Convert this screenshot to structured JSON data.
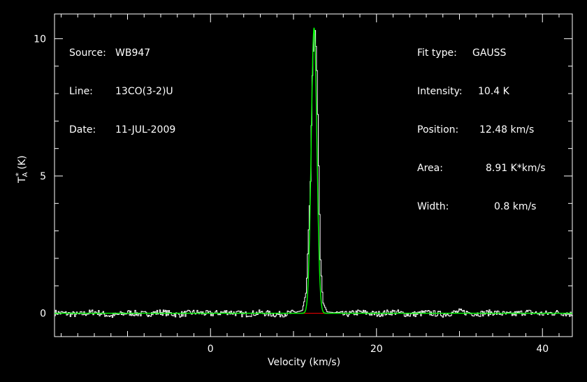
{
  "header_left": {
    "source_label": "Source:",
    "source_value": "WB947",
    "line_label": "Line:",
    "line_value": "13CO(3-2)U",
    "date_label": "Date:",
    "date_value": "11-JUL-2009"
  },
  "header_right": {
    "fit_type_label": "Fit type:",
    "fit_type_value": "GAUSS",
    "intensity_label": "Intensity:",
    "intensity_value": "10.4 K",
    "position_label": "Position:",
    "position_value": "12.48 km/s",
    "area_label": "Area:",
    "area_value": "8.91 K*km/s",
    "width_label": "Width:",
    "width_value": "0.8 km/s"
  },
  "chart_data": {
    "type": "line",
    "xlabel": "Velocity (km/s)",
    "ylabel_main": "T",
    "ylabel_sup": "*",
    "ylabel_sub": "A",
    "ylabel_unit": "(K)",
    "xlim": [
      -18.8,
      43.6
    ],
    "ylim": [
      -0.85,
      10.9
    ],
    "x_ticks": [
      0,
      20,
      40
    ],
    "y_ticks": [
      0,
      5,
      10
    ],
    "x_tick_labels": [
      "0",
      "20",
      "40"
    ],
    "y_tick_labels": [
      "0",
      "5",
      "10"
    ],
    "baseline": {
      "y": 0,
      "x_range": [
        10.5,
        14.5
      ],
      "color": "#ff0000"
    },
    "series": [
      {
        "kind": "observed",
        "color": "#ffffff",
        "x": [
          -18.5,
          -16,
          -14,
          -12,
          -10,
          -8,
          -6,
          -4,
          -2,
          0,
          2,
          4,
          6,
          8,
          10,
          11,
          11.5,
          12,
          12.2,
          12.4,
          12.5,
          12.6,
          12.8,
          13.0,
          13.2,
          13.5,
          14,
          15,
          16,
          18,
          20,
          22,
          24,
          26,
          28,
          30,
          32,
          34,
          36,
          38,
          40,
          42,
          43.5
        ],
        "y": [
          0.02,
          -0.05,
          0.05,
          -0.1,
          0.02,
          -0.03,
          0.04,
          -0.05,
          0.03,
          -0.02,
          0.05,
          -0.04,
          0.02,
          -0.05,
          0.02,
          0.1,
          0.8,
          4.8,
          8.5,
          10.1,
          10.4,
          10.2,
          8.6,
          5.2,
          2.0,
          0.4,
          0.05,
          0.02,
          -0.05,
          0.04,
          -0.03,
          0.05,
          -0.05,
          0.02,
          -0.04,
          0.06,
          -0.02,
          0.03,
          -0.05,
          0.04,
          -0.02,
          0.03,
          -0.04
        ]
      },
      {
        "kind": "fit",
        "color": "#00ff00",
        "gauss": {
          "amplitude": 10.4,
          "center": 12.48,
          "fwhm": 0.8
        }
      }
    ]
  }
}
